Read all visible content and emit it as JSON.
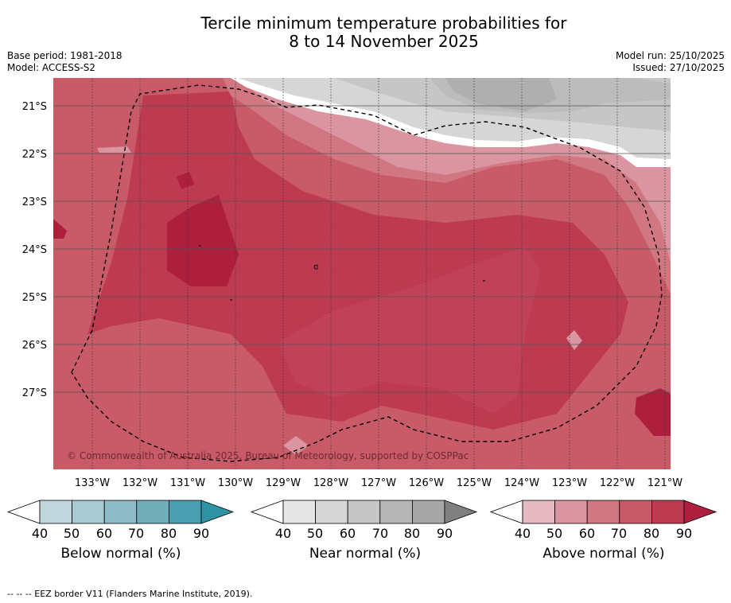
{
  "title": {
    "line1": "Tercile minimum temperature probabilities for",
    "line2": "8 to 14 November 2025"
  },
  "meta_left": {
    "base_period": "Base period: 1981-2018",
    "model": "Model: ACCESS-S2"
  },
  "meta_right": {
    "model_run": "Model run: 25/10/2025",
    "issued": "Issued: 27/10/2025"
  },
  "map": {
    "lat_labels": [
      "21°S",
      "22°S",
      "23°S",
      "24°S",
      "25°S",
      "26°S",
      "27°S"
    ],
    "lon_labels": [
      "133°W",
      "132°W",
      "131°W",
      "130°W",
      "129°W",
      "128°W",
      "127°W",
      "126°W",
      "125°W",
      "124°W",
      "123°W",
      "122°W",
      "121°W"
    ],
    "copyright": "© Commonwealth of Australia 2025, Bureau of Meteorology, supported by COSPPac"
  },
  "colorbars": [
    {
      "title": "Below normal (%)",
      "ticks": [
        "40",
        "50",
        "60",
        "70",
        "80",
        "90"
      ],
      "colors": [
        "#c0d6dc",
        "#a8cad1",
        "#8dbbc6",
        "#72adba",
        "#4a9fb0",
        "#2f93a6"
      ]
    },
    {
      "title": "Near normal (%)",
      "ticks": [
        "40",
        "50",
        "60",
        "70",
        "80",
        "90"
      ],
      "colors": [
        "#e6e6e6",
        "#d6d6d6",
        "#c6c6c6",
        "#b6b6b6",
        "#a6a6a6",
        "#808080"
      ]
    },
    {
      "title": "Above normal (%)",
      "ticks": [
        "40",
        "50",
        "60",
        "70",
        "80",
        "90"
      ],
      "colors": [
        "#e4b9c1",
        "#da95a1",
        "#d17782",
        "#c95a68",
        "#be3a50",
        "#ad1f3d"
      ]
    }
  ],
  "footer": "-- -- -- EEZ border V11 (Flanders Marine Institute, 2019)."
}
